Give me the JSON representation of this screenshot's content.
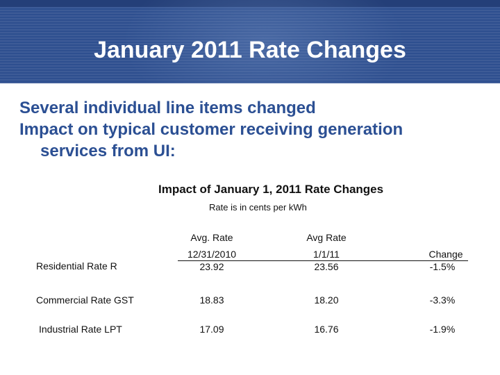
{
  "slide": {
    "title": "January 2011 Rate Changes",
    "bullets": [
      "Several individual line items changed",
      "Impact on typical customer receiving generation",
      "services from UI:"
    ]
  },
  "table": {
    "title": "Impact of January 1, 2011 Rate Changes",
    "subtitle": "Rate is in cents per kWh",
    "headers": {
      "col1_line1": "Avg. Rate",
      "col1_line2": "12/31/2010",
      "col2_line1": "Avg Rate",
      "col2_line2": "1/1/11",
      "col3": "Change"
    },
    "rows": [
      {
        "label": "Residential Rate R",
        "old": "23.92",
        "new": "23.56",
        "change": "-1.5%"
      },
      {
        "label": "Commercial Rate GST",
        "old": "18.83",
        "new": "18.20",
        "change": "-3.3%"
      },
      {
        "label": "Industrial Rate LPT",
        "old": "17.09",
        "new": "16.76",
        "change": "-1.9%"
      }
    ]
  },
  "colors": {
    "header_bg": "#2e4f8f",
    "bullet_text": "#2b4f93",
    "title_text": "#ffffff"
  }
}
